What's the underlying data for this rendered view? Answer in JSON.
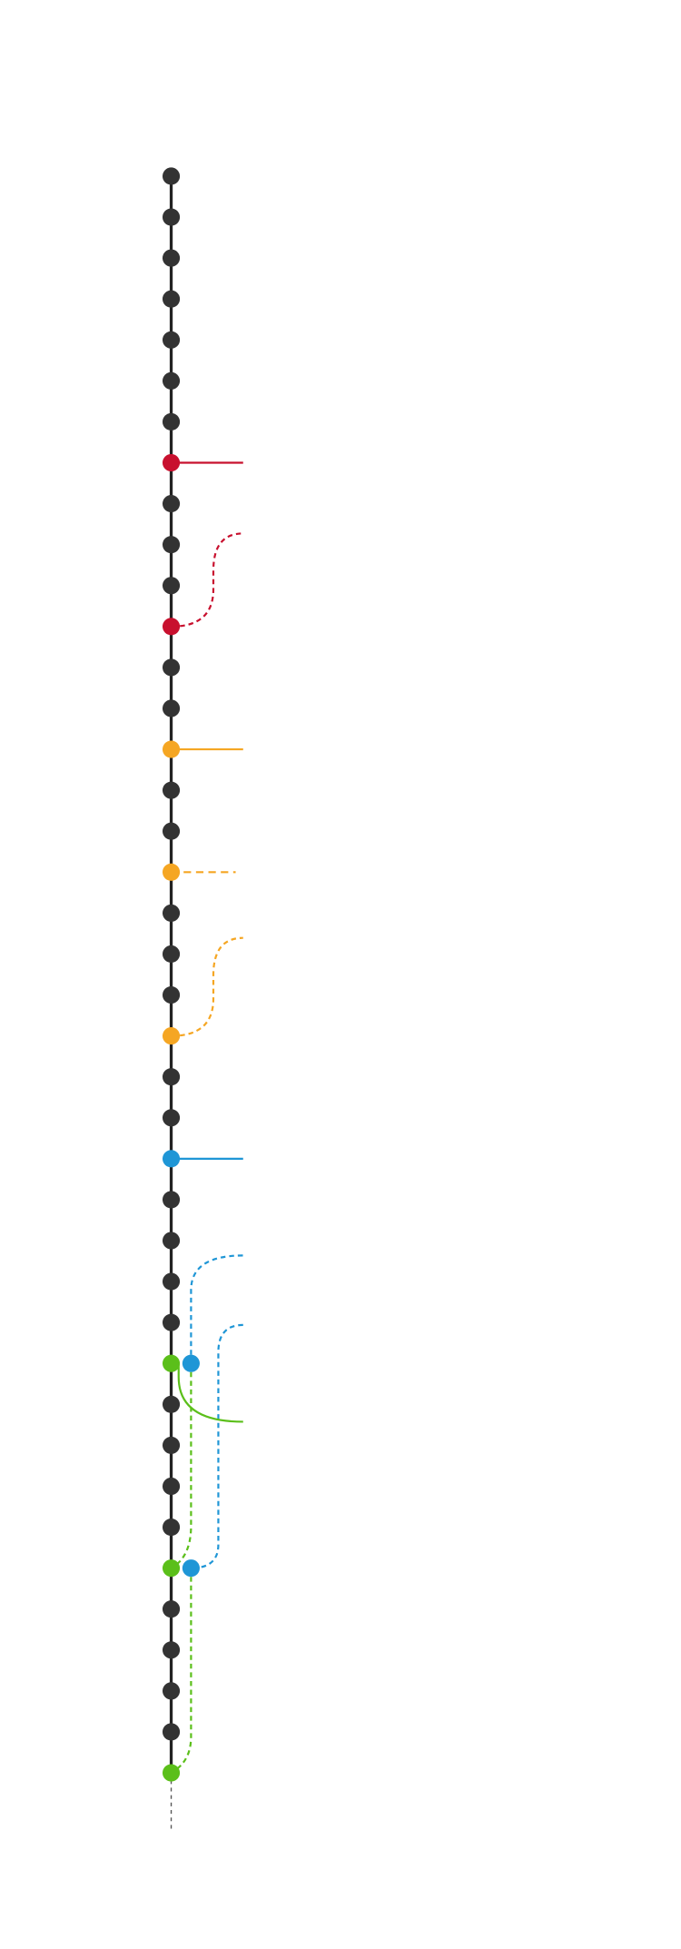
{
  "graph": {
    "lane_colors": {
      "main": "#333333",
      "red": "#c8102e",
      "yellow": "#f5a623",
      "blue": "#1f96d6",
      "green": "#5bbf1a"
    },
    "commits": [
      "main",
      "main",
      "main",
      "main",
      "main",
      "main",
      "main",
      "red",
      "main",
      "main",
      "main",
      "red",
      "main",
      "main",
      "yellow",
      "main",
      "main",
      "yellow",
      "main",
      "main",
      "main",
      "yellow",
      "main",
      "main",
      "blue",
      "main",
      "main",
      "main",
      "main",
      "green",
      "main",
      "main",
      "main",
      "main",
      "green",
      "main",
      "main",
      "main",
      "main",
      "green"
    ],
    "side_commits": [
      {
        "row": 29,
        "lane": "blue"
      },
      {
        "row": 34,
        "lane": "blue"
      }
    ]
  }
}
